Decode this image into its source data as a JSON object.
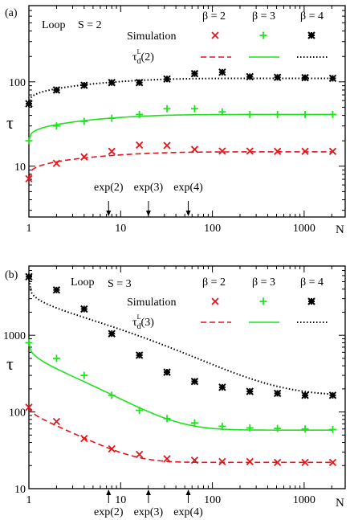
{
  "colors": {
    "beta2": "#e4141b",
    "beta3": "#1fe21f",
    "beta4": "#000000",
    "axis": "#000000"
  },
  "chart_data": [
    {
      "type": "scatter",
      "panel_label": "(a)",
      "model_label": "Loop",
      "spin_label": "S = 2",
      "legend": {
        "columns": [
          "β = 2",
          "β = 3",
          "β = 4"
        ],
        "simulation_label": "Simulation",
        "theory_label": "τ",
        "theory_sup": "L",
        "theory_sub": "d",
        "theory_arg": "(2)"
      },
      "ylabel": "τ",
      "xlabel": "N",
      "xscale": "log",
      "yscale": "log",
      "xlim": [
        1,
        2800
      ],
      "ylim": [
        2.5,
        800
      ],
      "x_ticks": [
        {
          "value": 1,
          "label": "1"
        },
        {
          "value": 10,
          "label": "10"
        },
        {
          "value": 100,
          "label": "100"
        },
        {
          "value": 1000,
          "label": "1000"
        }
      ],
      "y_ticks": [
        {
          "value": 10,
          "label": "10"
        },
        {
          "value": 100,
          "label": "100"
        }
      ],
      "markers": [
        {
          "label": "exp(2)",
          "x": 7.39
        },
        {
          "label": "exp(3)",
          "x": 20.09
        },
        {
          "label": "exp(4)",
          "x": 54.6
        }
      ],
      "series": [
        {
          "name": "β = 2",
          "color_key": "beta2",
          "marker": "x",
          "x": [
            1,
            2,
            4,
            8,
            16,
            32,
            64,
            128,
            256,
            512,
            1024,
            2048
          ],
          "y": [
            7.1,
            10.8,
            12.9,
            15.0,
            17.8,
            17.6,
            15.8,
            15.1,
            15.1,
            15.0,
            15.0,
            15.0
          ]
        },
        {
          "name": "β = 3",
          "color_key": "beta3",
          "marker": "plus",
          "x": [
            1,
            2,
            4,
            8,
            16,
            32,
            64,
            128,
            256,
            512,
            1024,
            2048
          ],
          "y": [
            20,
            30,
            34,
            37,
            41,
            48,
            48,
            44,
            41,
            41,
            41,
            41
          ]
        },
        {
          "name": "β = 4",
          "color_key": "beta4",
          "marker": "star",
          "x": [
            1,
            2,
            4,
            8,
            16,
            32,
            64,
            128,
            256,
            512,
            1024,
            2048
          ],
          "y": [
            55,
            80,
            91,
            98,
            98,
            108,
            125,
            130,
            115,
            113,
            112,
            110
          ]
        }
      ],
      "fits": [
        {
          "color_key": "beta2",
          "dash": "dashed",
          "inf": 14.8,
          "r": 0.4,
          "n0": 6
        },
        {
          "color_key": "beta3",
          "dash": "solid",
          "inf": 41,
          "r": 0.42,
          "n0": 6
        },
        {
          "color_key": "beta4",
          "dash": "dotted",
          "inf": 110,
          "r": 0.42,
          "n0": 7
        }
      ]
    },
    {
      "type": "scatter",
      "panel_label": "(b)",
      "model_label": "Loop",
      "spin_label": "S = 3",
      "legend": {
        "columns": [
          "β = 2",
          "β = 3",
          "β = 4"
        ],
        "simulation_label": "Simulation",
        "theory_label": "τ",
        "theory_sup": "L",
        "theory_sub": "d",
        "theory_arg": "(3)"
      },
      "ylabel": "τ",
      "xlabel": "N",
      "xscale": "log",
      "yscale": "log",
      "xlim": [
        1,
        2800
      ],
      "ylim": [
        10,
        8000
      ],
      "x_ticks": [
        {
          "value": 1,
          "label": "1"
        },
        {
          "value": 10,
          "label": "10"
        },
        {
          "value": 100,
          "label": "100"
        },
        {
          "value": 1000,
          "label": "1000"
        }
      ],
      "y_ticks": [
        {
          "value": 10,
          "label": "10"
        },
        {
          "value": 100,
          "label": "100"
        },
        {
          "value": 1000,
          "label": "1000"
        }
      ],
      "markers": [
        {
          "label": "exp(2)",
          "x": 7.39
        },
        {
          "label": "exp(3)",
          "x": 20.09
        },
        {
          "label": "exp(4)",
          "x": 54.6
        }
      ],
      "series": [
        {
          "name": "β = 2",
          "color_key": "beta2",
          "marker": "x",
          "x": [
            1,
            2,
            4,
            8,
            16,
            32,
            64,
            128,
            256,
            512,
            1024,
            2048
          ],
          "y": [
            115,
            75,
            45,
            33,
            28,
            24.5,
            23.5,
            22.5,
            22.5,
            22,
            22,
            22
          ]
        },
        {
          "name": "β = 3",
          "color_key": "beta3",
          "marker": "plus",
          "x": [
            1,
            2,
            4,
            8,
            16,
            32,
            64,
            128,
            256,
            512,
            1024,
            2048
          ],
          "y": [
            800,
            500,
            300,
            165,
            105,
            82,
            72,
            65,
            62,
            61,
            60,
            59
          ]
        },
        {
          "name": "β = 4",
          "color_key": "beta4",
          "marker": "star",
          "x": [
            1,
            2,
            4,
            8,
            16,
            32,
            64,
            128,
            256,
            512,
            1024,
            2048
          ],
          "y": [
            5800,
            3900,
            2200,
            1050,
            550,
            330,
            250,
            210,
            185,
            175,
            165,
            165
          ]
        }
      ],
      "fits": [
        {
          "color_key": "beta2",
          "dash": "dashed",
          "inf": 22,
          "r": 0.55,
          "n0": 4
        },
        {
          "color_key": "beta3",
          "dash": "solid",
          "inf": 58,
          "r": 0.4,
          "n0": 4.5
        },
        {
          "color_key": "beta4",
          "dash": "dotted",
          "inf": 163,
          "r": 0.25,
          "n0": 7
        }
      ]
    }
  ]
}
